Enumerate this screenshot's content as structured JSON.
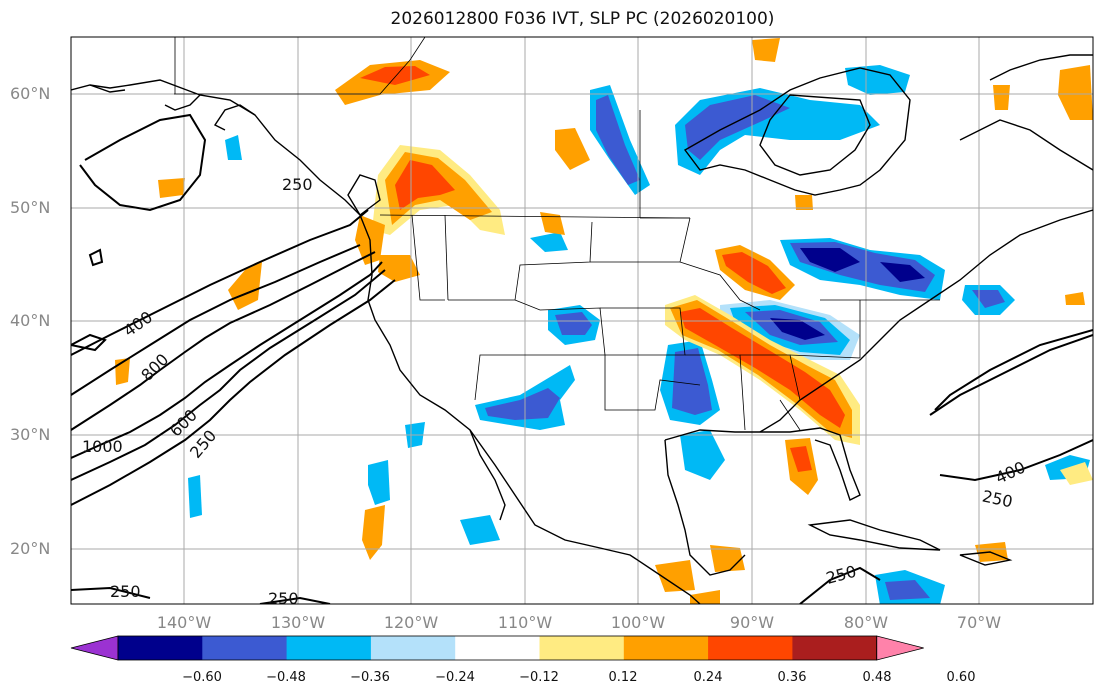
{
  "title": "2026012800 F036 IVT, SLP PC (2026020100)",
  "lat_labels": [
    "60°N",
    "50°N",
    "40°N",
    "30°N",
    "20°N"
  ],
  "lon_labels": [
    "140°W",
    "130°W",
    "120°W",
    "110°W",
    "100°W",
    "90°W",
    "80°W",
    "70°W"
  ],
  "colorbar": {
    "tick_labels": [
      "−0.60",
      "−0.48",
      "−0.36",
      "−0.24",
      "−0.12",
      "0.12",
      "0.24",
      "0.36",
      "0.48",
      "0.60"
    ],
    "colors": [
      "#9b32d2",
      "#00008c",
      "#3c5ad2",
      "#00b9f5",
      "#b4e1fa",
      "#ffffff",
      "#ffeb82",
      "#ffa000",
      "#ff4600",
      "#aa1e1e",
      "#ff82aa"
    ]
  },
  "contour_labels": [
    "250",
    "400",
    "800",
    "600",
    "1000",
    "250",
    "250",
    "250",
    "250",
    "400",
    "250"
  ],
  "colors": {
    "pos_strong": "#ff4600",
    "pos_mid": "#ffa000",
    "pos_weak": "#ffeb82",
    "neg_weak": "#b4e1fa",
    "neg_mid": "#00b9f5",
    "neg_strong": "#3c5ad2",
    "neg_max": "#00008c"
  }
}
